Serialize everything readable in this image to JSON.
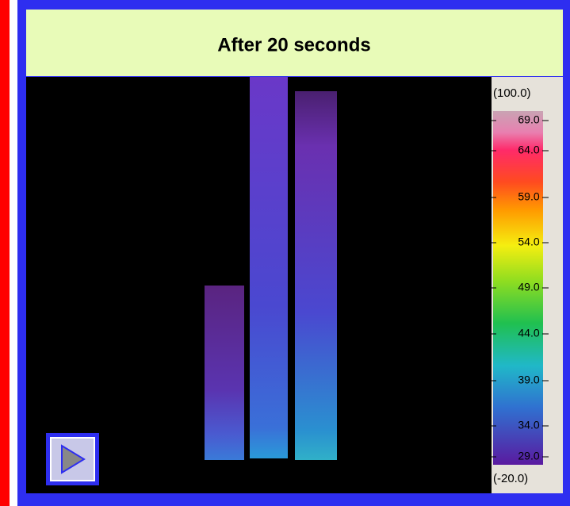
{
  "header": {
    "title": "After 20 seconds"
  },
  "scale": {
    "max_label": "(100.0)",
    "min_label": "(-20.0)",
    "labels": [
      "69.0",
      "64.0",
      "59.0",
      "54.0",
      "49.0",
      "44.0",
      "39.0",
      "34.0",
      "29.0"
    ]
  }
}
